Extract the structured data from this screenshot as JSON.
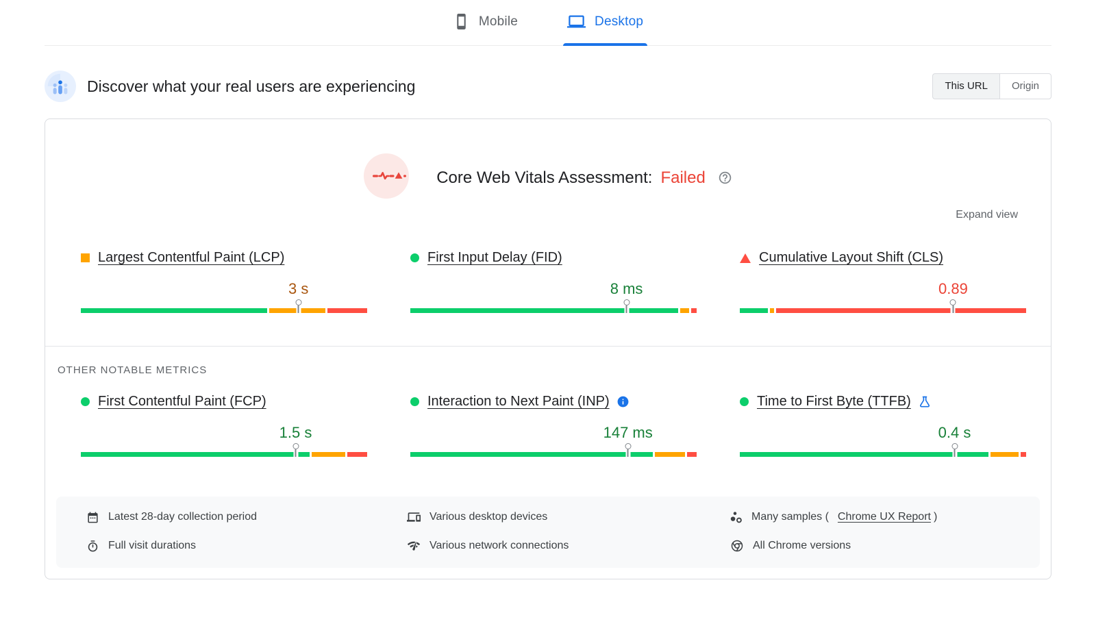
{
  "tabs": {
    "items": [
      {
        "label": "Mobile",
        "icon": "mobile-icon",
        "active": false
      },
      {
        "label": "Desktop",
        "icon": "desktop-icon",
        "active": true
      }
    ]
  },
  "header": {
    "title": "Discover what your real users are experiencing",
    "scope_toggle": [
      {
        "label": "This URL",
        "active": true
      },
      {
        "label": "Origin",
        "active": false
      }
    ]
  },
  "assessment": {
    "label": "Core Web Vitals Assessment:",
    "status": "Failed",
    "expand_label": "Expand view"
  },
  "sections": {
    "other_metrics_label": "OTHER NOTABLE METRICS"
  },
  "metrics": {
    "core": [
      {
        "name": "Largest Contentful Paint (LCP)",
        "value": "3 s",
        "status": "needs-improvement",
        "bullet": "square-orange",
        "badge": null,
        "marker_pct": 76,
        "segments": [
          {
            "level": "good",
            "pct": 66
          },
          {
            "level": "needs-improvement",
            "pct": 20
          },
          {
            "level": "poor",
            "pct": 14
          }
        ]
      },
      {
        "name": "First Input Delay (FID)",
        "value": "8 ms",
        "status": "good",
        "bullet": "circle-green",
        "badge": null,
        "marker_pct": 75.5,
        "segments": [
          {
            "level": "good",
            "pct": 95
          },
          {
            "level": "needs-improvement",
            "pct": 3
          },
          {
            "level": "poor",
            "pct": 2
          }
        ]
      },
      {
        "name": "Cumulative Layout Shift (CLS)",
        "value": "0.89",
        "status": "poor",
        "bullet": "triangle-red",
        "badge": null,
        "marker_pct": 74.5,
        "segments": [
          {
            "level": "good",
            "pct": 10
          },
          {
            "level": "needs-improvement",
            "pct": 1.5
          },
          {
            "level": "poor",
            "pct": 88.5
          }
        ]
      }
    ],
    "other": [
      {
        "name": "First Contentful Paint (FCP)",
        "value": "1.5 s",
        "status": "good",
        "bullet": "circle-green",
        "badge": null,
        "marker_pct": 75,
        "segments": [
          {
            "level": "good",
            "pct": 81
          },
          {
            "level": "needs-improvement",
            "pct": 12
          },
          {
            "level": "poor",
            "pct": 7
          }
        ]
      },
      {
        "name": "Interaction to Next Paint (INP)",
        "value": "147 ms",
        "status": "good",
        "bullet": "circle-green",
        "badge": "info-icon",
        "marker_pct": 76,
        "segments": [
          {
            "level": "good",
            "pct": 86
          },
          {
            "level": "needs-improvement",
            "pct": 10.5
          },
          {
            "level": "poor",
            "pct": 3.5
          }
        ]
      },
      {
        "name": "Time to First Byte (TTFB)",
        "value": "0.4 s",
        "status": "good",
        "bullet": "circle-green",
        "badge": "flask-icon",
        "marker_pct": 75,
        "segments": [
          {
            "level": "good",
            "pct": 88
          },
          {
            "level": "needs-improvement",
            "pct": 10
          },
          {
            "level": "poor",
            "pct": 2
          }
        ]
      }
    ]
  },
  "footer": {
    "columns": [
      {
        "items": [
          {
            "icon": "calendar-icon",
            "text": "Latest 28-day collection period"
          },
          {
            "icon": "stopwatch-icon",
            "text": "Full visit durations"
          }
        ]
      },
      {
        "items": [
          {
            "icon": "devices-icon",
            "text": "Various desktop devices"
          },
          {
            "icon": "network-icon",
            "text": "Various network connections"
          }
        ]
      },
      {
        "items": [
          {
            "icon": "samples-icon",
            "text": "Many samples (",
            "link": "Chrome UX Report",
            "suffix": ")"
          },
          {
            "icon": "chrome-icon",
            "text": "All Chrome versions"
          }
        ]
      }
    ]
  },
  "colors": {
    "accent_blue": "#1a73e8",
    "good": "#0cce6b",
    "needs_improvement": "#ffa400",
    "poor": "#ff4e42",
    "good_text": "#188038",
    "needs_improvement_text": "#a9560f",
    "poor_text": "#eb4336"
  }
}
